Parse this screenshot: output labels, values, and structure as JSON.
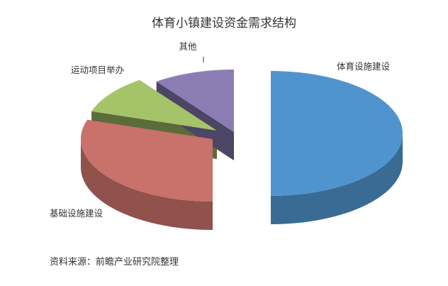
{
  "chart_data": {
    "type": "pie",
    "style": "3d-exploded",
    "title": "体育小镇建设资金需求结构",
    "slices": [
      {
        "label": "体育设施建设",
        "value": 50,
        "color": "#4F94CE"
      },
      {
        "label": "基础设施建设",
        "value": 30,
        "color": "#C9716B"
      },
      {
        "label": "运动项目举办",
        "value": 10,
        "color": "#A5C46A"
      },
      {
        "label": "其他",
        "value": 10,
        "color": "#8B7DB4"
      }
    ],
    "legend": "none",
    "source": "资料来源：前瞻产业研究院整理"
  }
}
